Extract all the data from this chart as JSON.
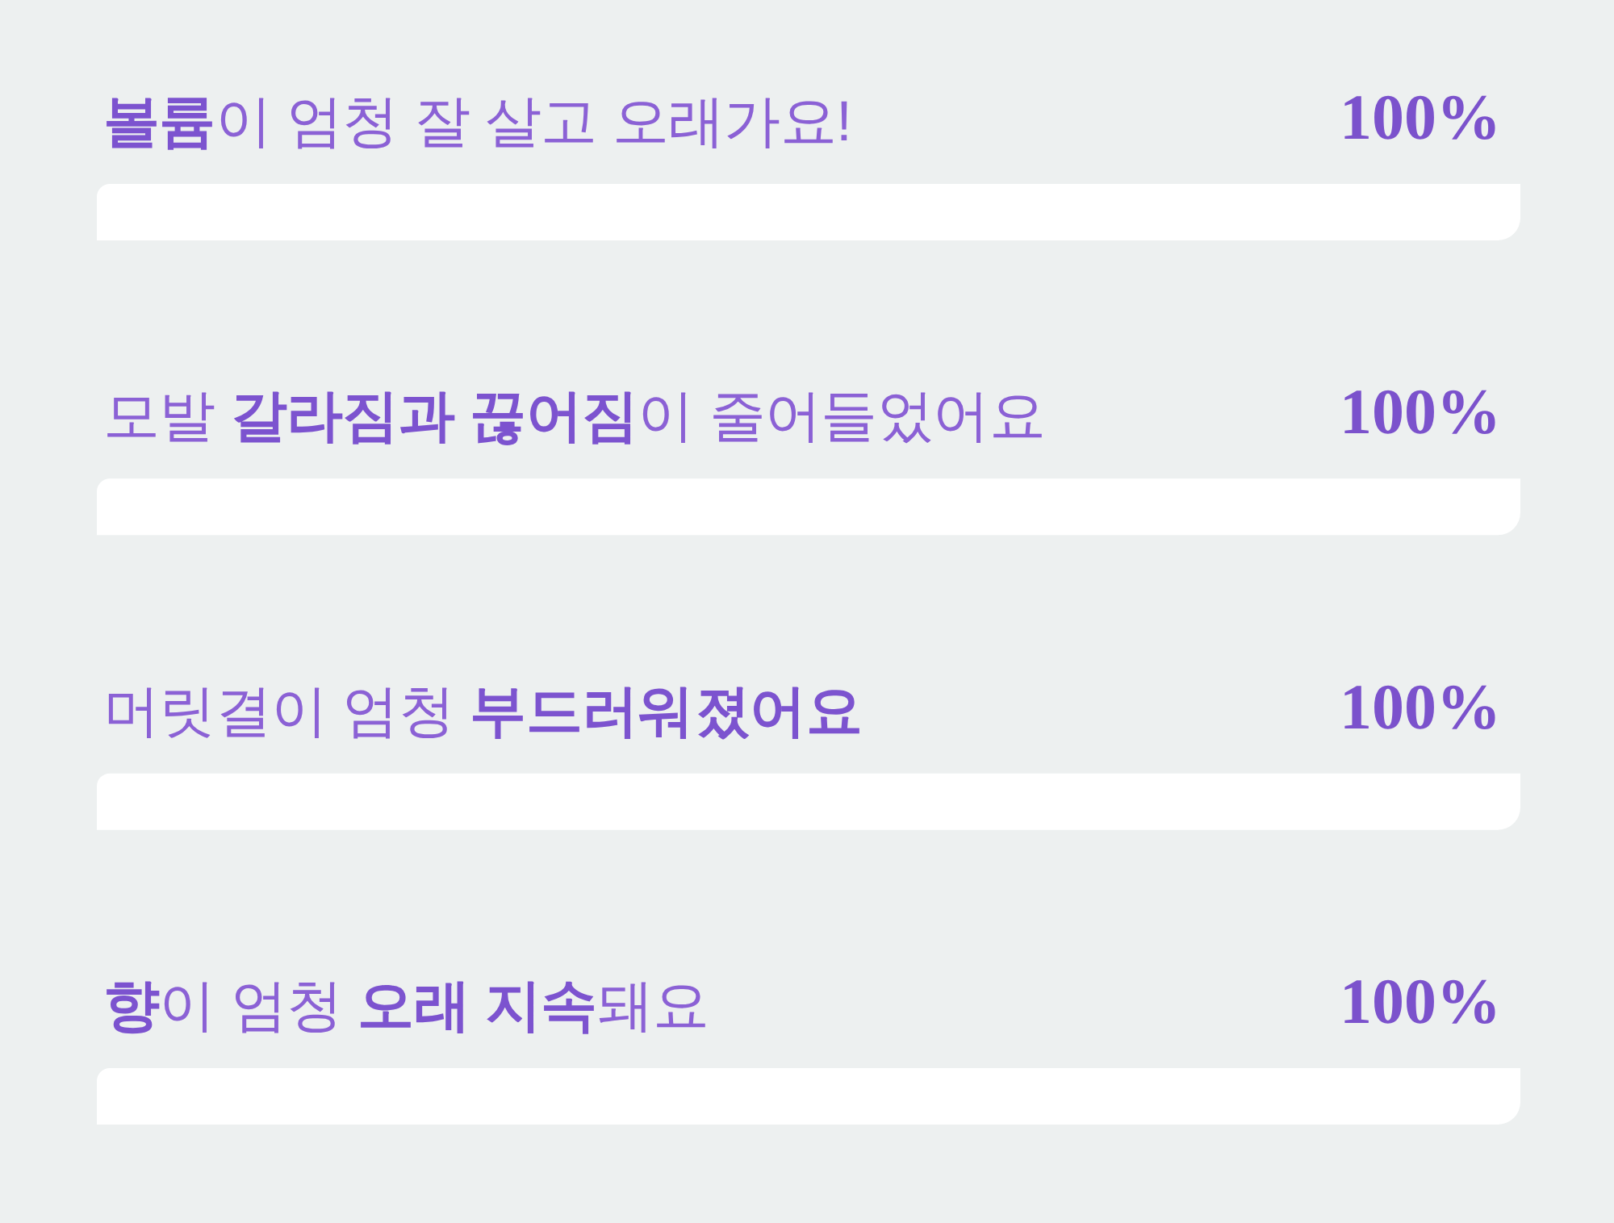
{
  "chart_data": {
    "type": "bar",
    "orientation": "horizontal",
    "categories": [
      "볼륨이 엄청 잘 살고 오래가요!",
      "모발 갈라짐과 끊어짐이 줄어들었어요",
      "머릿결이 엄청 부드러워졌어요",
      "향이 엄청 오래 지속돼요"
    ],
    "values": [
      100,
      100,
      100,
      100
    ],
    "value_labels": [
      "100%",
      "100%",
      "100%",
      "100%"
    ],
    "color": "#ffffff",
    "tick_labels": "y"
  }
}
